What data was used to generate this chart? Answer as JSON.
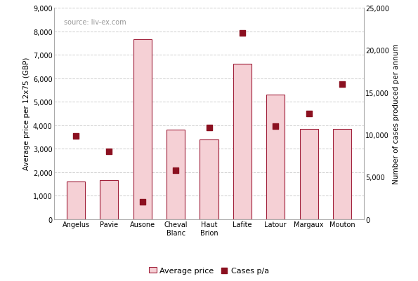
{
  "categories": [
    "Angelus",
    "Pavie",
    "Ausone",
    "Cheval\nBlanc",
    "Haut\nBrion",
    "Lafite",
    "Latour",
    "Margaux",
    "Mouton"
  ],
  "avg_price": [
    1600,
    1650,
    7650,
    3800,
    3380,
    6600,
    5300,
    3850,
    3850
  ],
  "cases_pa": [
    9800,
    8000,
    2000,
    5800,
    10800,
    22000,
    11000,
    12500,
    16000
  ],
  "bar_color": "#f5d0d5",
  "bar_edge_color": "#a0203a",
  "scatter_color": "#8b1020",
  "left_ylim": [
    0,
    9000
  ],
  "left_yticks": [
    0,
    1000,
    2000,
    3000,
    4000,
    5000,
    6000,
    7000,
    8000,
    9000
  ],
  "right_ylim": [
    0,
    25000
  ],
  "right_yticks": [
    0,
    5000,
    10000,
    15000,
    20000,
    25000
  ],
  "left_ylabel": "Average price per 12x75 (GBP)",
  "right_ylabel": "Number of cases produced per annum",
  "source_text": "source: liv-ex.com",
  "legend_bar_label": "Average price",
  "legend_scatter_label": "Cases p/a",
  "background_color": "#ffffff",
  "grid_color": "#cccccc"
}
